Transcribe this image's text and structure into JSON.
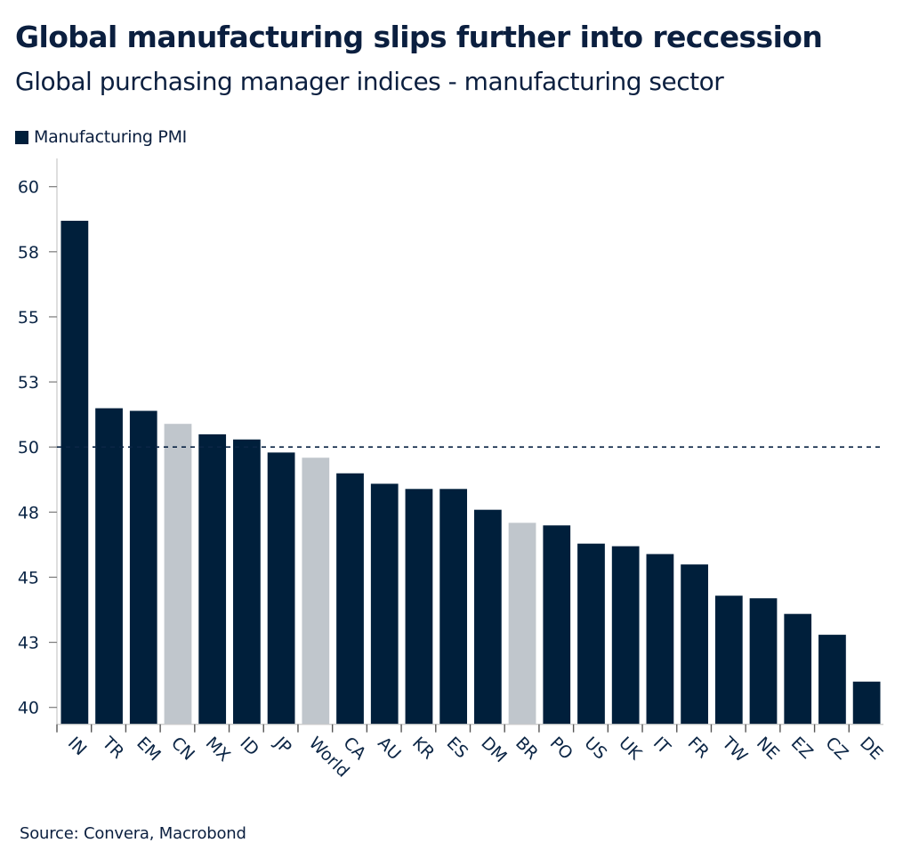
{
  "title": "Global manufacturing slips further into reccession",
  "subtitle": "Global purchasing manager indices - manufacturing sector",
  "legend": {
    "label": "Manufacturing PMI"
  },
  "source": "Source: Convera, Macrobond",
  "colors": {
    "primary": "#001f3b",
    "highlight": "#c0c6cc",
    "axis": "#c8c8c8",
    "reference_line": "#0b2545"
  },
  "chart_data": {
    "type": "bar",
    "title": "Global manufacturing slips further into reccession",
    "subtitle": "Global purchasing manager indices - manufacturing sector",
    "xlabel": "",
    "ylabel": "",
    "legend": [
      "Manufacturing PMI"
    ],
    "legend_position": "top-left",
    "grid": false,
    "ylim": [
      39.35,
      60.4
    ],
    "yticks": [
      {
        "value": 40,
        "label": "40"
      },
      {
        "value": 42.5,
        "label": "43"
      },
      {
        "value": 45,
        "label": "45"
      },
      {
        "value": 47.5,
        "label": "48"
      },
      {
        "value": 50,
        "label": "50"
      },
      {
        "value": 52.5,
        "label": "53"
      },
      {
        "value": 55,
        "label": "55"
      },
      {
        "value": 57.5,
        "label": "58"
      },
      {
        "value": 60,
        "label": "60"
      }
    ],
    "reference_line": {
      "value": 50,
      "style": "dashed"
    },
    "categories": [
      "IN",
      "TR",
      "EM",
      "CN",
      "MX",
      "ID",
      "JP",
      "World",
      "CA",
      "AU",
      "KR",
      "ES",
      "DM",
      "BR",
      "PO",
      "US",
      "UK",
      "IT",
      "FR",
      "TW",
      "NE",
      "EZ",
      "CZ",
      "DE"
    ],
    "series": [
      {
        "name": "Manufacturing PMI",
        "values": [
          58.7,
          51.5,
          51.4,
          50.9,
          50.5,
          50.3,
          49.8,
          49.6,
          49.0,
          48.6,
          48.4,
          48.4,
          47.6,
          47.1,
          47.0,
          46.3,
          46.2,
          45.9,
          45.5,
          44.3,
          44.2,
          43.6,
          42.8,
          41.0
        ],
        "highlighted": [
          "CN",
          "World",
          "BR"
        ]
      }
    ]
  }
}
